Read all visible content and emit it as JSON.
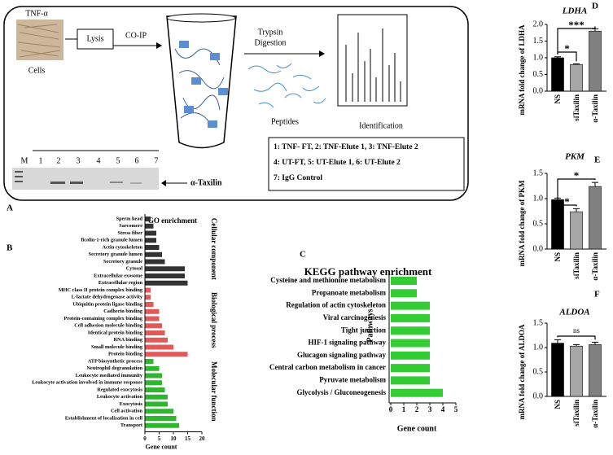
{
  "panel_labels": [
    "A",
    "B",
    "C",
    "D",
    "E",
    "F"
  ],
  "panel_a": {
    "treatment": "TNF-α",
    "cells": "Cells",
    "lysis": "Lysis",
    "coip": "CO-IP",
    "digestion": [
      "Trypsin",
      "Digestion"
    ],
    "peptides": "Peptides",
    "identification": "Identification",
    "lanes": [
      "M",
      "1",
      "2",
      "3",
      "4",
      "5",
      "6",
      "7"
    ],
    "band": "α-Taxilin",
    "legend": [
      "1: TNF- FT, 2: TNF-Elute 1, 3: TNF-Elute 2",
      "4: UT-FT, 5: UT-Elute 1, 6: UT-Elute 2",
      "7: IgG Control"
    ]
  },
  "chart_data": [
    {
      "type": "hbar_groups",
      "title": "GO enrichment",
      "x_label": "Gene count",
      "xlim": [
        0,
        20
      ],
      "xticks": [
        0,
        5,
        10,
        15,
        20
      ],
      "groups": [
        {
          "name": "Cellular component",
          "color": "#333333",
          "categories": [
            "Sperm head",
            "Sarcomere",
            "Stress fiber",
            "ficolin-1-rich granule lumen",
            "Actin cytoskeleton",
            "Secretory granule lumen",
            "Secretory granule",
            "Cytosol",
            "Extracellular exosome",
            "Extracellular region"
          ],
          "values": [
            2,
            3,
            4,
            4,
            5,
            6,
            7,
            14,
            14,
            15
          ]
        },
        {
          "name": "Biological process",
          "color": "#e05a5a",
          "categories": [
            "MHC class II protein complex binding",
            "L-lactate dehydrogenase activity",
            "Ubiquitin protein ligase binding",
            "Cadherin binding",
            "Protein-containing complex binding",
            "Cell adhesion molecule binding",
            "Identical protein binding",
            "RNA binding",
            "Small molecule binding",
            "Protein binding"
          ],
          "values": [
            2,
            2,
            3,
            5,
            5,
            6,
            7,
            8,
            10,
            15
          ]
        },
        {
          "name": "Molecular function",
          "color": "#2fb52f",
          "categories": [
            "ATP biosynthetic process",
            "Neutrophil degranulation",
            "Leukocyte mediated immunity",
            "Leukocyte activation involved in immune response",
            "Regulated exocytosis",
            "Leukocyte activation",
            "Exocytosis",
            "Cell activation",
            "Establishment of localization in cell",
            "Transport"
          ],
          "values": [
            3,
            5,
            6,
            6,
            7,
            8,
            8,
            10,
            11,
            12
          ]
        }
      ]
    },
    {
      "type": "hbar",
      "title": "KEGG pathway enrichment",
      "x_label": "Gene count",
      "y_label": "Pathways",
      "color": "#33cc33",
      "xlim": [
        0,
        5
      ],
      "xticks": [
        0,
        1,
        2,
        3,
        4,
        5
      ],
      "categories": [
        "Cysteine and methionine metabolism",
        "Propanoate metabolism",
        "Regulation of actin cytoskeleton",
        "Viral carcinogenesis",
        "Tight junction",
        "HIF-1 signaling pathway",
        "Glucagon signaling pathway",
        "Central carbon metabolism in cancer",
        "Pyruvate metabolism",
        "Glycolysis / Gluconeogenesis"
      ],
      "values": [
        2,
        2,
        3,
        3,
        3,
        3,
        3,
        3,
        3,
        4
      ]
    },
    {
      "type": "bar_err",
      "title": "LDHA",
      "y_label": "mRNA fold change of LDHA",
      "categories": [
        "NS",
        "siTaxilin",
        "α-Taxilin"
      ],
      "values": [
        1.0,
        0.8,
        1.8
      ],
      "errors": [
        0.03,
        0.02,
        0.07
      ],
      "colors": [
        "#000000",
        "#a6a6a6",
        "#808080"
      ],
      "ylim": [
        0,
        2.0
      ],
      "yticks": [
        {
          "value": 0,
          "label": "0.0"
        },
        0.5,
        {
          "value": 1,
          "label": "1.0"
        },
        1.5,
        {
          "value": 2,
          "label": "2.0"
        }
      ],
      "significance": [
        "***",
        "*"
      ]
    },
    {
      "type": "bar_err",
      "title": "PKM",
      "y_label": "mRNA fold change of PKM",
      "categories": [
        "NS",
        "siTaxilin",
        "α-Taxilin"
      ],
      "values": [
        0.98,
        0.74,
        1.24
      ],
      "errors": [
        0.03,
        0.06,
        0.08
      ],
      "colors": [
        "#000000",
        "#a6a6a6",
        "#808080"
      ],
      "ylim": [
        0,
        1.5
      ],
      "yticks": [
        {
          "value": 0,
          "label": "0.0"
        },
        0.5,
        {
          "value": 1,
          "label": "1.0"
        },
        1.5
      ],
      "significance": [
        "*",
        "*"
      ]
    },
    {
      "type": "bar_err",
      "title": "ALDOA",
      "y_label": "mRNA fold change of ALDOA",
      "categories": [
        "NS",
        "siTaxilin",
        "α-Taxilin"
      ],
      "values": [
        1.09,
        1.03,
        1.06
      ],
      "errors": [
        0.07,
        0.03,
        0.05
      ],
      "colors": [
        "#000000",
        "#a6a6a6",
        "#808080"
      ],
      "ylim": [
        0,
        1.5
      ],
      "yticks": [
        {
          "value": 0,
          "label": "0.0"
        },
        0.5,
        {
          "value": 1,
          "label": "1.0"
        },
        1.5
      ],
      "significance": [
        "ns"
      ]
    }
  ]
}
